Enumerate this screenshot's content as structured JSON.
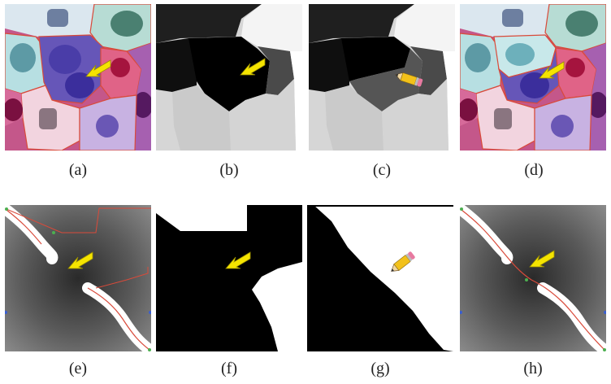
{
  "figure": {
    "panels": [
      {
        "id": "a",
        "label": "(a)",
        "kind": "cell-segmentation-color",
        "marker": "arrow-icon"
      },
      {
        "id": "b",
        "label": "(b)",
        "kind": "region-label-map",
        "marker": "arrow-icon"
      },
      {
        "id": "c",
        "label": "(c)",
        "kind": "region-label-map-edited",
        "marker": "pencil-icon"
      },
      {
        "id": "d",
        "label": "(d)",
        "kind": "cell-segmentation-corrected",
        "marker": "arrow-icon"
      },
      {
        "id": "e",
        "label": "(e)",
        "kind": "vessel-boundary",
        "marker": "arrow-icon"
      },
      {
        "id": "f",
        "label": "(f)",
        "kind": "binary-mask",
        "marker": "arrow-icon"
      },
      {
        "id": "g",
        "label": "(g)",
        "kind": "binary-mask-edited",
        "marker": "pencil-icon"
      },
      {
        "id": "h",
        "label": "(h)",
        "kind": "vessel-boundary-corrected",
        "marker": "arrow-icon"
      }
    ],
    "colors": {
      "arrow": "#f5e400",
      "boundary": "#d94a3a",
      "mask_black": "#000000",
      "mask_white": "#ffffff"
    }
  }
}
